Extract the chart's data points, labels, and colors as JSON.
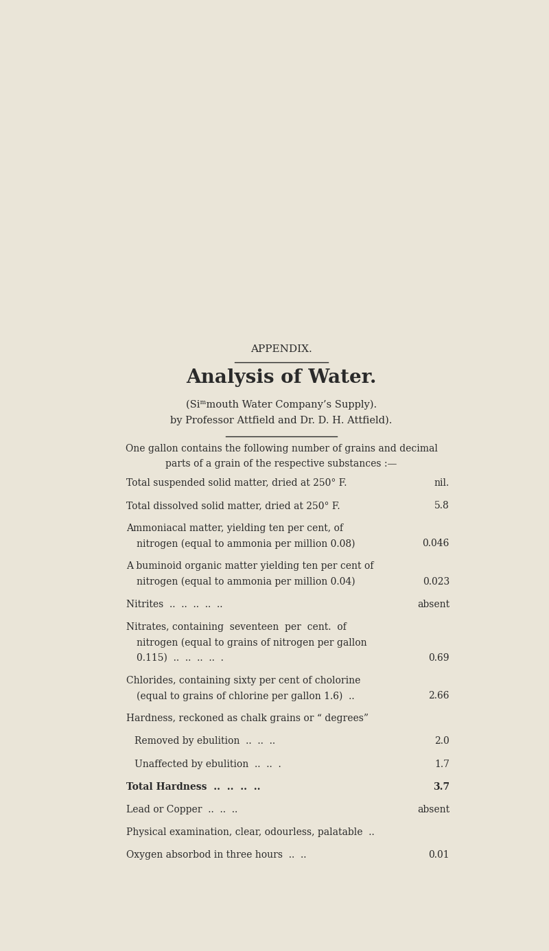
{
  "bg_color": "#EAE5D8",
  "text_color": "#2a2a2a",
  "page_width": 8.0,
  "page_height": 13.86,
  "appendix_label": "APPENDIX.",
  "title": "Analysis of Water.",
  "subtitle1": "(Siᵐmouth Water Company’s Supply).",
  "subtitle2": "by Professor Attfield and Dr. D. H. Attfield).",
  "intro_line1": "One gallon contains the following number of grains and decimal",
  "intro_line2": "parts of a grain of the respective substances :—",
  "rows": [
    {
      "lines": [
        "Total suspended solid matter, dried at 250° F."
      ],
      "value": "nil.",
      "indent": false,
      "bold": false
    },
    {
      "lines": [
        "Total dissolved solid matter, dried at 250° F."
      ],
      "value": "5.8",
      "indent": false,
      "bold": false
    },
    {
      "lines": [
        "Ammoniacal matter, yielding ten per cent, of",
        "nitrogen (equal to ammonia per million 0.08)"
      ],
      "value": "0.046",
      "indent": false,
      "bold": false
    },
    {
      "lines": [
        "A buminoid organic matter yielding ten per cent of",
        "nitrogen (equal to ammonia per million 0.04)"
      ],
      "value": "0.023",
      "indent": false,
      "bold": false
    },
    {
      "lines": [
        "Nitrites  ..  ..  ..  ..  .."
      ],
      "value": "absent",
      "indent": false,
      "bold": false
    },
    {
      "lines": [
        "Nitrates, containing  seventeen  per  cent.  of",
        "nitrogen (equal to grains of nitrogen per gallon",
        "0.115)  ..  ..  ..  ..  ."
      ],
      "value": "0.69",
      "indent": false,
      "bold": false
    },
    {
      "lines": [
        "Chlorides, containing sixty per cent of cholorine",
        "(equal to grains of chlorine per gallon 1.6)  .."
      ],
      "value": "2.66",
      "indent": false,
      "bold": false
    },
    {
      "lines": [
        "Hardness, reckoned as chalk grains or “ degrees”"
      ],
      "value": "",
      "indent": false,
      "bold": false
    },
    {
      "lines": [
        "Removed by ebulition  ..  ..  .."
      ],
      "value": "2.0",
      "indent": true,
      "bold": false
    },
    {
      "lines": [
        "Unaffected by ebulition  ..  ..  ."
      ],
      "value": "1.7",
      "indent": true,
      "bold": false
    },
    {
      "lines": [
        "Total Hardness  ..  ..  ..  .."
      ],
      "value": "3.7",
      "indent": false,
      "bold": true
    },
    {
      "lines": [
        "Lead or Copper  ..  ..  .."
      ],
      "value": "absent",
      "indent": false,
      "bold": false
    },
    {
      "lines": [
        "Physical examination, clear, odourless, palatable  .."
      ],
      "value": "",
      "indent": false,
      "bold": false
    },
    {
      "lines": [
        "Oxygen absorbod in three hours  ..  .."
      ],
      "value": "0.01",
      "indent": false,
      "bold": false
    }
  ]
}
